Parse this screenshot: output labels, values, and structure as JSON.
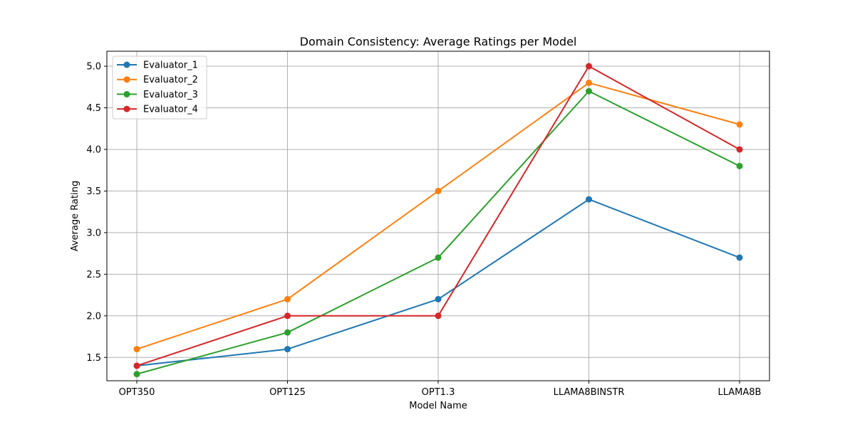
{
  "chart_data": {
    "type": "line",
    "title": "Domain Consistency: Average Ratings per Model",
    "xlabel": "Model Name",
    "ylabel": "Average Rating",
    "categories": [
      "OPT350",
      "OPT125",
      "OPT1.3",
      "LLAMA8BINSTR",
      "LLAMA8B"
    ],
    "yticks": [
      "1.5",
      "2.0",
      "2.5",
      "3.0",
      "3.5",
      "4.0",
      "4.5",
      "5.0"
    ],
    "ylim": [
      1.22,
      5.18
    ],
    "grid": true,
    "legend_position": "top-left",
    "series": [
      {
        "name": "Evaluator_1",
        "color": "#1f77b4",
        "values": [
          1.4,
          1.6,
          2.2,
          3.4,
          2.7
        ]
      },
      {
        "name": "Evaluator_2",
        "color": "#ff7f0e",
        "values": [
          1.6,
          2.2,
          3.5,
          4.8,
          4.3
        ]
      },
      {
        "name": "Evaluator_3",
        "color": "#2ca02c",
        "values": [
          1.3,
          1.8,
          2.7,
          4.7,
          3.8
        ]
      },
      {
        "name": "Evaluator_4",
        "color": "#d62728",
        "values": [
          1.4,
          2.0,
          2.0,
          5.0,
          4.0
        ]
      }
    ]
  }
}
